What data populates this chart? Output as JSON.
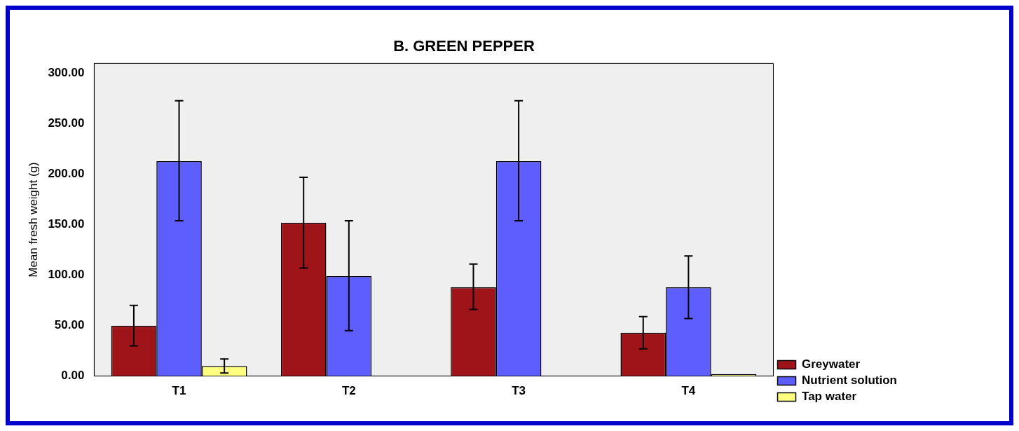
{
  "chart_data": {
    "type": "bar",
    "title": "B. GREEN PEPPER",
    "ylabel": "Mean fresh weight (g)",
    "categories": [
      "T1",
      "T2",
      "T3",
      "T4"
    ],
    "series": [
      {
        "name": "Greywater",
        "color": "#9e1419",
        "values": [
          50,
          152,
          88,
          43
        ],
        "errors": [
          [
            30,
            70
          ],
          [
            107,
            197
          ],
          [
            66,
            111
          ],
          [
            27,
            59
          ]
        ]
      },
      {
        "name": "Nutrient solution",
        "color": "#5e5eff",
        "values": [
          213,
          99,
          213,
          88
        ],
        "errors": [
          [
            154,
            273
          ],
          [
            45,
            154
          ],
          [
            154,
            273
          ],
          [
            57,
            119
          ]
        ]
      },
      {
        "name": "Tap water",
        "color": "#ffff80",
        "values": [
          10,
          0,
          0,
          2
        ],
        "errors": [
          [
            3,
            17
          ],
          null,
          null,
          null
        ]
      }
    ],
    "ylim": [
      0,
      310
    ],
    "yticks": [
      {
        "value": 0,
        "label": "0.00"
      },
      {
        "value": 50,
        "label": "50.00"
      },
      {
        "value": 100,
        "label": "100.00"
      },
      {
        "value": 150,
        "label": "150.00"
      },
      {
        "value": 200,
        "label": "200.00"
      },
      {
        "value": 250,
        "label": "250.00"
      },
      {
        "value": 300,
        "label": "300.00"
      }
    ],
    "grid": false,
    "legend": "bottom right"
  }
}
